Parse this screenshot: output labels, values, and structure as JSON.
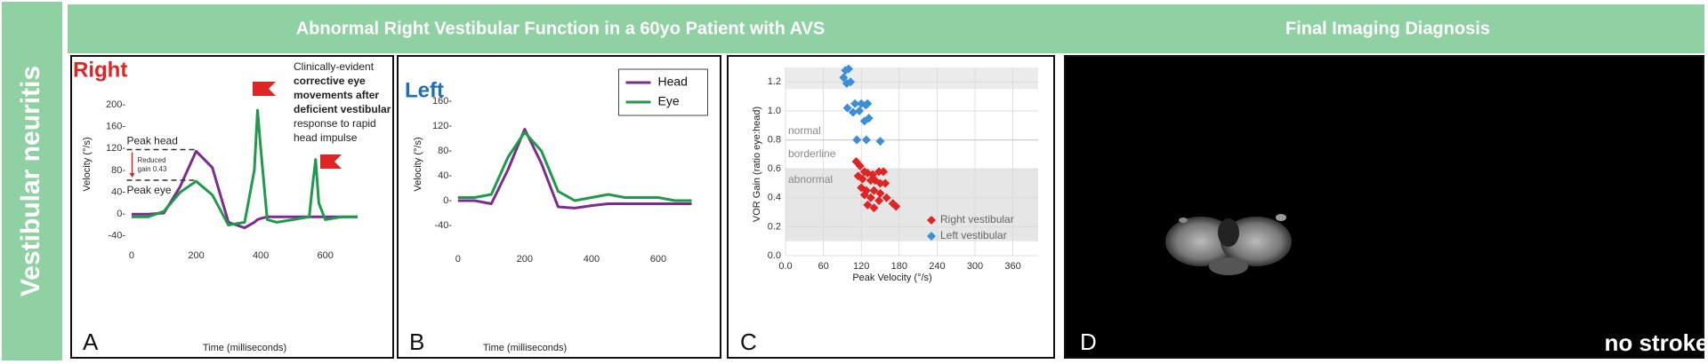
{
  "sidebar_label": "Vestibular neuritis",
  "banner": {
    "title": "Abnormal Right Vestibular Function in a 60yo Patient with AVS",
    "right_title": "Final Imaging Diagnosis"
  },
  "chart_data": [
    {
      "type": "line",
      "panel_label": "A",
      "side_label": "Right",
      "x_label": "Time (milliseconds)",
      "y_label": "Velocity (°/s)",
      "x": [
        0,
        50,
        100,
        150,
        200,
        250,
        300,
        350,
        380,
        390,
        400,
        420,
        450,
        500,
        550,
        560,
        570,
        580,
        600,
        650,
        700
      ],
      "series": [
        {
          "name": "Head",
          "color": "#7b2d8e",
          "values": [
            0,
            0,
            2,
            50,
            115,
            85,
            -15,
            -25,
            -15,
            -10,
            -8,
            -5,
            -5,
            -5,
            -5,
            -5,
            -5,
            -5,
            -5,
            -5,
            -5
          ]
        },
        {
          "name": "Eye",
          "color": "#1e9a4a",
          "values": [
            -5,
            -5,
            5,
            40,
            60,
            35,
            -20,
            -15,
            80,
            190,
            120,
            -10,
            -15,
            -10,
            -5,
            50,
            100,
            20,
            -10,
            -5,
            -5
          ]
        }
      ],
      "xlim": [
        -15,
        700
      ],
      "ylim": [
        -50,
        230
      ],
      "xticks": [
        0,
        200,
        400,
        600
      ],
      "yticks": [
        {
          "value": -40,
          "label": "-40-"
        },
        {
          "value": 0,
          "label": "0-"
        },
        {
          "value": 40,
          "label": "40-"
        },
        {
          "value": 80,
          "label": "80-"
        },
        {
          "value": 120,
          "label": "120-"
        },
        {
          "value": 160,
          "label": "160-"
        },
        {
          "value": 200,
          "label": "200-"
        }
      ],
      "peak_labels": [
        "Peak head",
        "Peak eye"
      ],
      "peak_levels": [
        118,
        62
      ],
      "gain_note": [
        "Reduced",
        "gain 0.43"
      ],
      "annotation": [
        {
          "text": "Clinically-evident",
          "weight": "normal"
        },
        {
          "text": "corrective eye",
          "weight": "bold"
        },
        {
          "text": "movements after",
          "weight": "bold"
        },
        {
          "text": "deficient vestibular",
          "weight": "bold"
        },
        {
          "text": "response to rapid",
          "weight": "normal"
        },
        {
          "text": "head impulse",
          "weight": "normal"
        }
      ]
    },
    {
      "type": "line",
      "panel_label": "B",
      "side_label": "Left",
      "x_label": "Time (milliseconds)",
      "y_label": "Velocity (°/s)",
      "x": [
        0,
        50,
        100,
        150,
        200,
        250,
        300,
        350,
        400,
        450,
        500,
        550,
        600,
        650,
        700
      ],
      "series": [
        {
          "name": "Head",
          "color": "#7b2d8e",
          "values": [
            0,
            0,
            -5,
            50,
            115,
            60,
            -10,
            -12,
            -8,
            -5,
            -5,
            -5,
            -5,
            -5,
            -5
          ]
        },
        {
          "name": "Eye",
          "color": "#1e9a4a",
          "values": [
            5,
            5,
            10,
            70,
            110,
            80,
            15,
            0,
            5,
            10,
            5,
            5,
            5,
            0,
            0
          ]
        }
      ],
      "xlim": [
        -10,
        700
      ],
      "ylim": [
        -60,
        180
      ],
      "xticks": [
        0,
        200,
        400,
        600
      ],
      "yticks": [
        {
          "value": -40,
          "label": "-40-"
        },
        {
          "value": 0,
          "label": "0-"
        },
        {
          "value": 40,
          "label": "40-"
        },
        {
          "value": 80,
          "label": "80-"
        },
        {
          "value": 120,
          "label": "120-"
        },
        {
          "value": 160,
          "label": "160-"
        }
      ],
      "legend": "top-right"
    },
    {
      "type": "scatter",
      "panel_label": "C",
      "x_label": "Peak Velocity (°/s)",
      "y_label": "VOR Gain (ratio eye:head)",
      "zone_labels": [
        "normal",
        "borderline",
        "abnormal"
      ],
      "series": [
        {
          "name": "Right vestibular",
          "color": "#e02424",
          "x": [
            112,
            118,
            125,
            130,
            138,
            148,
            155,
            115,
            122,
            135,
            142,
            150,
            158,
            120,
            128,
            140,
            150,
            125,
            135,
            148,
            160,
            170,
            130,
            175,
            140
          ],
          "values": [
            0.65,
            0.62,
            0.58,
            0.57,
            0.56,
            0.58,
            0.58,
            0.55,
            0.53,
            0.52,
            0.52,
            0.5,
            0.5,
            0.47,
            0.45,
            0.45,
            0.43,
            0.42,
            0.4,
            0.38,
            0.4,
            0.36,
            0.35,
            0.34,
            0.33
          ]
        },
        {
          "name": "Left vestibular",
          "color": "#3a8fd8",
          "x": [
            95,
            100,
            92,
            97,
            103,
            110,
            120,
            127,
            130,
            98,
            107,
            117,
            132,
            125,
            113,
            128,
            150
          ],
          "values": [
            1.28,
            1.29,
            1.23,
            1.19,
            1.2,
            1.05,
            1.05,
            1.04,
            1.05,
            1.02,
            0.99,
            1.0,
            0.95,
            0.93,
            0.8,
            0.8,
            0.79
          ]
        }
      ],
      "xlim": [
        0,
        400
      ],
      "ylim": [
        0,
        1.3
      ],
      "xticks": [
        {
          "value": 0,
          "label": "0.0"
        },
        60,
        120,
        180,
        240,
        300,
        360
      ],
      "yticks": [
        {
          "value": 0,
          "label": "0.0"
        },
        0.2,
        0.4,
        0.6,
        0.8,
        {
          "value": 1,
          "label": "1.0"
        },
        1.2
      ],
      "grid": true,
      "legend": "bottom-right"
    }
  ],
  "image_panel": {
    "panel_label": "D",
    "caption": "no stroke"
  }
}
